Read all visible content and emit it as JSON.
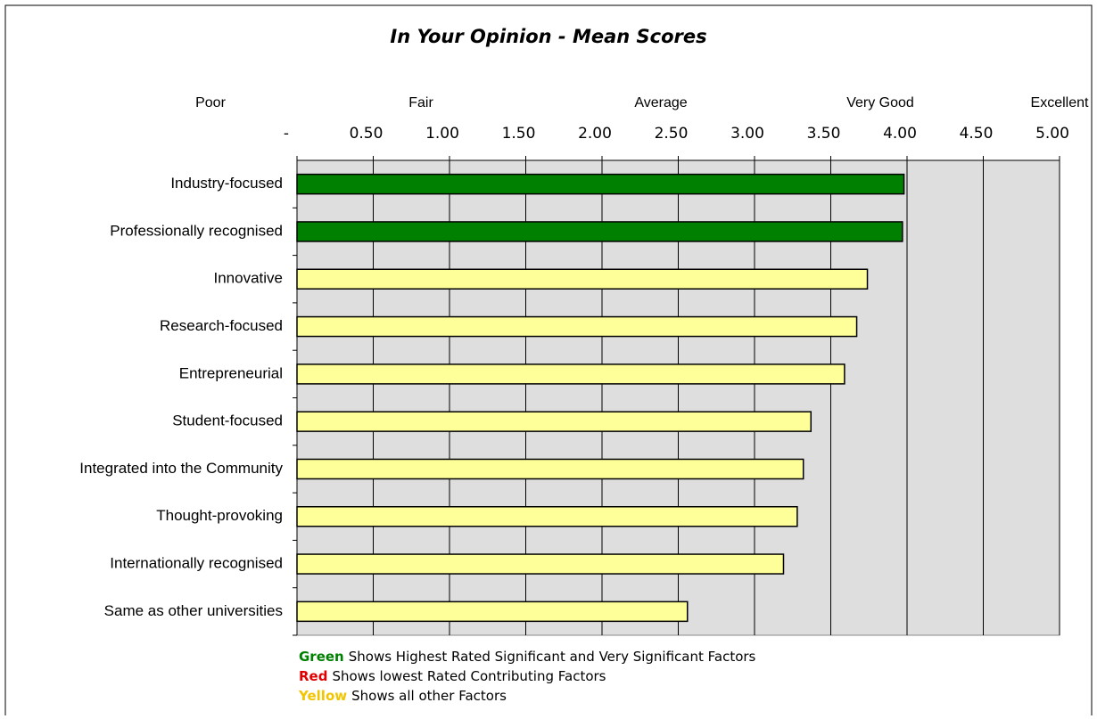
{
  "chart_data": {
    "type": "bar",
    "orientation": "horizontal",
    "title": "In Your Opinion - Mean Scores",
    "scale_labels": [
      "Poor",
      "Fair",
      "Average",
      "Very Good",
      "Excellent"
    ],
    "categories": [
      "Industry-focused",
      "Professionally recognised",
      "Innovative",
      "Research-focused",
      "Entrepreneurial",
      "Student-focused",
      "Integrated into the Community",
      "Thought-provoking",
      "Internationally recognised",
      "Same as other universities"
    ],
    "values": [
      3.98,
      3.97,
      3.74,
      3.67,
      3.59,
      3.37,
      3.32,
      3.28,
      3.19,
      2.56
    ],
    "colors": [
      "#008000",
      "#008000",
      "#ffff99",
      "#ffff99",
      "#ffff99",
      "#ffff99",
      "#ffff99",
      "#ffff99",
      "#ffff99",
      "#ffff99"
    ],
    "xlim": [
      0,
      5
    ],
    "xticks": [
      {
        "value": 0,
        "label": "-"
      },
      {
        "value": 0.5,
        "label": "0.50"
      },
      {
        "value": 1,
        "label": "1.00"
      },
      {
        "value": 1.5,
        "label": "1.50"
      },
      {
        "value": 2,
        "label": "2.00"
      },
      {
        "value": 2.5,
        "label": "2.50"
      },
      {
        "value": 3,
        "label": "3.00"
      },
      {
        "value": 3.5,
        "label": "3.50"
      },
      {
        "value": 4,
        "label": "4.00"
      },
      {
        "value": 4.5,
        "label": "4.50"
      },
      {
        "value": 5,
        "label": "5.00"
      }
    ],
    "grid": true,
    "notes": [
      {
        "key": "Green",
        "text": "Shows Highest Rated Significant and Very Significant Factors",
        "color": "#008000"
      },
      {
        "key": "Red",
        "text": "Shows lowest Rated Contributing Factors",
        "color": "#e00000"
      },
      {
        "key": "Yellow",
        "text": "Shows all other Factors",
        "color": "#f2c500"
      }
    ]
  }
}
